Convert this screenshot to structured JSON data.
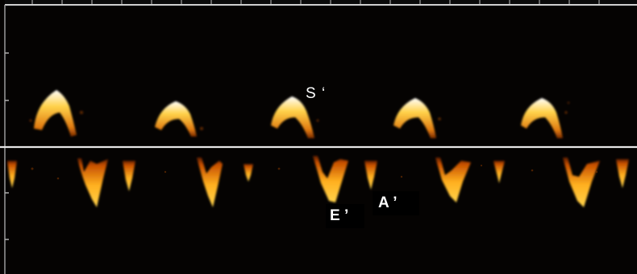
{
  "image": {
    "kind": "tissue-doppler-spectral-trace",
    "colors": {
      "background": "#050302",
      "axis": "#d9d9d9",
      "wave_core": "#ffffff",
      "wave_mid": "#ffcc33",
      "wave_edge": "#d05a00"
    }
  },
  "labels": {
    "s_wave": "S ‘",
    "e_wave": "E ’",
    "a_wave": "A ’"
  }
}
